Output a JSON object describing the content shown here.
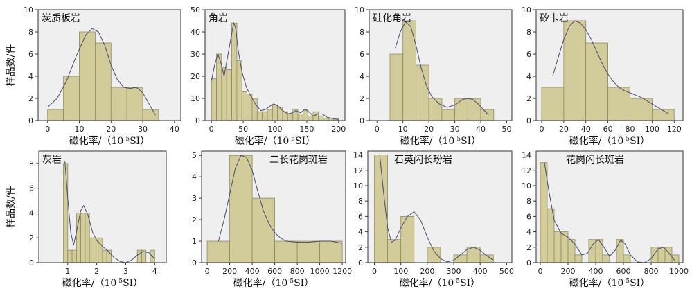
{
  "chart_data": [
    {
      "type": "bar",
      "title": "炭质板岩",
      "xlabel": "磁化率/（10",
      "xlabel_sup": "-5",
      "xlabel_tail": "SI）",
      "ylabel": "样品数/件",
      "xlim": [
        -3,
        42
      ],
      "ylim": [
        0,
        10
      ],
      "xticks": [
        0,
        10,
        20,
        30,
        40
      ],
      "yticks": [
        0,
        2,
        4,
        6,
        8,
        10
      ],
      "bins": [
        [
          0,
          5
        ],
        [
          5,
          10
        ],
        [
          10,
          15
        ],
        [
          15,
          20
        ],
        [
          20,
          25
        ],
        [
          25,
          30
        ],
        [
          30,
          35
        ]
      ],
      "values": [
        1,
        4,
        8,
        7,
        3,
        3,
        1
      ],
      "curve": [
        [
          0,
          1.2
        ],
        [
          3,
          2
        ],
        [
          6,
          3.6
        ],
        [
          9,
          5.8
        ],
        [
          12,
          7.7
        ],
        [
          14,
          8.3
        ],
        [
          16,
          8
        ],
        [
          18,
          6.8
        ],
        [
          20,
          5
        ],
        [
          22,
          3.7
        ],
        [
          24,
          3
        ],
        [
          26,
          2.9
        ],
        [
          28,
          3
        ],
        [
          30,
          2.5
        ],
        [
          32,
          1.5
        ],
        [
          34,
          0.5
        ]
      ]
    },
    {
      "type": "bar",
      "title": "角岩",
      "xlabel": "磁化率/（10",
      "xlabel_sup": "-5",
      "xlabel_tail": "SI）",
      "ylabel": "",
      "xlim": [
        -10,
        210
      ],
      "ylim": [
        0,
        50
      ],
      "xticks": [
        0,
        50,
        100,
        150,
        200
      ],
      "yticks": [
        0,
        10,
        20,
        30,
        40,
        50
      ],
      "bins": [
        [
          0,
          8
        ],
        [
          8,
          16
        ],
        [
          16,
          24
        ],
        [
          24,
          32
        ],
        [
          32,
          40
        ],
        [
          40,
          48
        ],
        [
          48,
          56
        ],
        [
          56,
          64
        ],
        [
          64,
          72
        ],
        [
          72,
          80
        ],
        [
          80,
          88
        ],
        [
          88,
          96
        ],
        [
          96,
          104
        ],
        [
          104,
          112
        ],
        [
          112,
          120
        ],
        [
          120,
          128
        ],
        [
          128,
          136
        ],
        [
          136,
          144
        ],
        [
          144,
          152
        ],
        [
          152,
          160
        ],
        [
          160,
          168
        ],
        [
          168,
          176
        ],
        [
          176,
          184
        ],
        [
          184,
          192
        ],
        [
          192,
          200
        ]
      ],
      "values": [
        19,
        30,
        24,
        23,
        44,
        27,
        13,
        12,
        10,
        4,
        4,
        5,
        7,
        6,
        4,
        3,
        5,
        3,
        5,
        2,
        4,
        2,
        1,
        1,
        1
      ],
      "curve": [
        [
          0,
          18
        ],
        [
          5,
          25
        ],
        [
          10,
          30
        ],
        [
          15,
          26
        ],
        [
          20,
          20
        ],
        [
          25,
          28
        ],
        [
          30,
          36
        ],
        [
          35,
          44
        ],
        [
          38,
          42
        ],
        [
          42,
          32
        ],
        [
          48,
          22
        ],
        [
          55,
          15
        ],
        [
          62,
          11
        ],
        [
          70,
          7
        ],
        [
          78,
          4.5
        ],
        [
          85,
          5
        ],
        [
          92,
          6.5
        ],
        [
          98,
          7.5
        ],
        [
          105,
          6.5
        ],
        [
          112,
          4.5
        ],
        [
          120,
          3
        ],
        [
          127,
          3.5
        ],
        [
          133,
          4.5
        ],
        [
          140,
          3.5
        ],
        [
          147,
          5
        ],
        [
          153,
          4
        ],
        [
          160,
          2
        ],
        [
          167,
          3
        ],
        [
          174,
          3
        ],
        [
          182,
          1.5
        ],
        [
          190,
          1
        ],
        [
          200,
          0.4
        ]
      ]
    },
    {
      "type": "bar",
      "title": "硅化角岩",
      "xlabel": "磁化率/（10",
      "xlabel_sup": "-5",
      "xlabel_tail": "SI）",
      "ylabel": "",
      "xlim": [
        -3,
        52
      ],
      "ylim": [
        0,
        10
      ],
      "xticks": [
        0,
        10,
        20,
        30,
        40,
        50
      ],
      "yticks": [
        0,
        2,
        4,
        6,
        8,
        10
      ],
      "bins": [
        [
          5,
          10
        ],
        [
          10,
          15
        ],
        [
          15,
          20
        ],
        [
          20,
          25
        ],
        [
          25,
          30
        ],
        [
          30,
          35
        ],
        [
          35,
          40
        ],
        [
          40,
          45
        ]
      ],
      "values": [
        6,
        9,
        5,
        2,
        1,
        2,
        2,
        1
      ],
      "curve": [
        [
          7,
          6.5
        ],
        [
          9,
          8
        ],
        [
          11,
          8.9
        ],
        [
          13,
          8.5
        ],
        [
          15,
          6.8
        ],
        [
          17,
          4.8
        ],
        [
          19,
          3.2
        ],
        [
          21,
          2.2
        ],
        [
          24,
          1.5
        ],
        [
          27,
          1.2
        ],
        [
          30,
          1.4
        ],
        [
          33,
          1.9
        ],
        [
          35,
          2
        ],
        [
          37,
          1.9
        ],
        [
          39,
          1.5
        ],
        [
          41,
          1
        ],
        [
          43,
          0.5
        ]
      ]
    },
    {
      "type": "bar",
      "title": "矽卡岩",
      "xlabel": "磁化率/（10",
      "xlabel_sup": "-5",
      "xlabel_tail": "SI）",
      "ylabel": "",
      "xlim": [
        -5,
        128
      ],
      "ylim": [
        0,
        10
      ],
      "xticks": [
        0,
        20,
        40,
        60,
        80,
        100,
        120
      ],
      "yticks": [
        0,
        2,
        4,
        6,
        8,
        10
      ],
      "bins": [
        [
          0,
          20
        ],
        [
          20,
          40
        ],
        [
          40,
          60
        ],
        [
          60,
          80
        ],
        [
          80,
          100
        ],
        [
          100,
          120
        ]
      ],
      "values": [
        3,
        9,
        7,
        3,
        2,
        1
      ],
      "curve": [
        [
          10,
          4
        ],
        [
          15,
          5.7
        ],
        [
          20,
          7.3
        ],
        [
          25,
          8.5
        ],
        [
          30,
          9
        ],
        [
          35,
          8.8
        ],
        [
          40,
          8.2
        ],
        [
          45,
          7.3
        ],
        [
          50,
          6.2
        ],
        [
          55,
          5.1
        ],
        [
          60,
          4.2
        ],
        [
          65,
          3.5
        ],
        [
          70,
          3
        ],
        [
          75,
          2.7
        ],
        [
          80,
          2.5
        ],
        [
          85,
          2.3
        ],
        [
          90,
          2.1
        ],
        [
          95,
          1.8
        ],
        [
          100,
          1.5
        ],
        [
          105,
          1.2
        ],
        [
          110,
          0.9
        ],
        [
          115,
          0.6
        ]
      ]
    },
    {
      "type": "bar",
      "title": "灰岩",
      "xlabel": "磁化率/（10",
      "xlabel_sup": "-5",
      "xlabel_tail": "SI）",
      "ylabel": "样品数/件",
      "xlim": [
        0,
        4.4
      ],
      "ylim": [
        0,
        9
      ],
      "xticks": [
        1,
        2,
        3,
        4
      ],
      "yticks": [
        0,
        2,
        4,
        6,
        8
      ],
      "bins": [
        [
          0.85,
          1.0
        ],
        [
          1.0,
          1.15
        ],
        [
          1.15,
          1.3
        ],
        [
          1.3,
          1.45
        ],
        [
          1.45,
          1.6
        ],
        [
          1.6,
          1.75
        ],
        [
          1.75,
          1.9
        ],
        [
          1.9,
          2.05
        ],
        [
          2.05,
          2.2
        ],
        [
          2.2,
          2.35
        ],
        [
          2.35,
          2.5
        ],
        [
          3.4,
          3.55
        ],
        [
          3.55,
          3.7
        ],
        [
          3.85,
          4.0
        ]
      ],
      "values": [
        8,
        1,
        1,
        4,
        4,
        4,
        2,
        2,
        2,
        1,
        1,
        1,
        1,
        1
      ],
      "curve": [
        [
          0.9,
          8.2
        ],
        [
          1.0,
          5.2
        ],
        [
          1.1,
          2.5
        ],
        [
          1.2,
          1.4
        ],
        [
          1.3,
          2.5
        ],
        [
          1.45,
          4.2
        ],
        [
          1.55,
          4.6
        ],
        [
          1.7,
          3.8
        ],
        [
          1.85,
          2.5
        ],
        [
          2.0,
          1.8
        ],
        [
          2.2,
          1.3
        ],
        [
          2.4,
          0.9
        ],
        [
          2.6,
          0.4
        ],
        [
          2.8,
          0.1
        ],
        [
          3.0,
          0
        ],
        [
          3.2,
          0.2
        ],
        [
          3.4,
          0.6
        ],
        [
          3.6,
          0.9
        ],
        [
          3.8,
          0.8
        ],
        [
          4.0,
          0.3
        ]
      ]
    },
    {
      "type": "bar",
      "title": "二长花岗斑岩",
      "xlabel": "磁化率/（10",
      "xlabel_sup": "-5",
      "xlabel_tail": "SI）",
      "ylabel": "",
      "xlim": [
        -50,
        1230
      ],
      "ylim": [
        0,
        5.2
      ],
      "xticks": [
        0,
        200,
        400,
        600,
        800,
        1000,
        1200
      ],
      "yticks": [
        0,
        1,
        2,
        3,
        4,
        5
      ],
      "bins": [
        [
          0,
          200
        ],
        [
          200,
          400
        ],
        [
          400,
          600
        ],
        [
          600,
          800
        ],
        [
          800,
          1000
        ],
        [
          1000,
          1200
        ]
      ],
      "values": [
        1,
        5,
        3,
        1,
        1,
        1
      ],
      "curve": [
        [
          100,
          1
        ],
        [
          150,
          2
        ],
        [
          200,
          3.2
        ],
        [
          250,
          4.4
        ],
        [
          300,
          5
        ],
        [
          350,
          4.9
        ],
        [
          400,
          4.3
        ],
        [
          450,
          3.3
        ],
        [
          500,
          2.4
        ],
        [
          550,
          1.8
        ],
        [
          600,
          1.4
        ],
        [
          650,
          1.15
        ],
        [
          700,
          1
        ],
        [
          800,
          0.95
        ],
        [
          900,
          0.95
        ],
        [
          1000,
          1
        ],
        [
          1100,
          1
        ],
        [
          1200,
          0.9
        ]
      ]
    },
    {
      "type": "bar",
      "title": "石英闪长玢岩",
      "xlabel": "磁化率/（10",
      "xlabel_sup": "-5",
      "xlabel_tail": "SI）",
      "ylabel": "",
      "xlim": [
        -25,
        520
      ],
      "ylim": [
        0,
        14.5
      ],
      "xticks": [
        0,
        100,
        200,
        300,
        400,
        500
      ],
      "yticks": [
        0,
        2,
        4,
        6,
        8,
        10,
        12,
        14
      ],
      "bins": [
        [
          0,
          50
        ],
        [
          50,
          100
        ],
        [
          100,
          150
        ],
        [
          200,
          250
        ],
        [
          300,
          350
        ],
        [
          350,
          400
        ],
        [
          400,
          450
        ]
      ],
      "values": [
        14,
        3,
        6,
        2,
        1,
        2,
        1
      ],
      "curve": [
        [
          20,
          14
        ],
        [
          35,
          9
        ],
        [
          50,
          4.5
        ],
        [
          65,
          2.6
        ],
        [
          80,
          3
        ],
        [
          100,
          4.5
        ],
        [
          125,
          6
        ],
        [
          150,
          6.6
        ],
        [
          175,
          5.5
        ],
        [
          200,
          3.3
        ],
        [
          225,
          1.5
        ],
        [
          250,
          0.5
        ],
        [
          275,
          0.1
        ],
        [
          300,
          0.3
        ],
        [
          325,
          1
        ],
        [
          350,
          1.7
        ],
        [
          375,
          2
        ],
        [
          400,
          1.6
        ],
        [
          425,
          0.9
        ],
        [
          450,
          0.3
        ]
      ]
    },
    {
      "type": "bar",
      "title": "花岗闪长斑岩",
      "xlabel": "磁化率/（10",
      "xlabel_sup": "-5",
      "xlabel_tail": "SI）",
      "ylabel": "",
      "xlim": [
        -30,
        1030
      ],
      "ylim": [
        0,
        14.5
      ],
      "xticks": [
        0,
        200,
        400,
        600,
        800,
        1000
      ],
      "yticks": [
        0,
        2,
        4,
        6,
        8,
        10,
        12,
        14
      ],
      "bins": [
        [
          0,
          50
        ],
        [
          50,
          100
        ],
        [
          100,
          150
        ],
        [
          150,
          200
        ],
        [
          200,
          250
        ],
        [
          250,
          300
        ],
        [
          350,
          400
        ],
        [
          400,
          450
        ],
        [
          450,
          500
        ],
        [
          550,
          600
        ],
        [
          600,
          650
        ],
        [
          800,
          850
        ],
        [
          850,
          900
        ],
        [
          900,
          950
        ],
        [
          950,
          1000
        ]
      ],
      "values": [
        13,
        7,
        4,
        4,
        3,
        1,
        3,
        3,
        1,
        3,
        1,
        2,
        2,
        2,
        1
      ],
      "curve": [
        [
          30,
          13
        ],
        [
          60,
          9.5
        ],
        [
          100,
          5.5
        ],
        [
          150,
          3.8
        ],
        [
          200,
          3.3
        ],
        [
          250,
          2.4
        ],
        [
          300,
          1
        ],
        [
          340,
          1.2
        ],
        [
          380,
          2.4
        ],
        [
          420,
          3
        ],
        [
          460,
          2
        ],
        [
          500,
          0.8
        ],
        [
          540,
          1.6
        ],
        [
          580,
          2.9
        ],
        [
          610,
          2.5
        ],
        [
          650,
          1
        ],
        [
          700,
          0.1
        ],
        [
          750,
          0
        ],
        [
          800,
          0.5
        ],
        [
          850,
          1.8
        ],
        [
          890,
          2
        ],
        [
          930,
          1.2
        ],
        [
          970,
          0.3
        ]
      ]
    }
  ]
}
